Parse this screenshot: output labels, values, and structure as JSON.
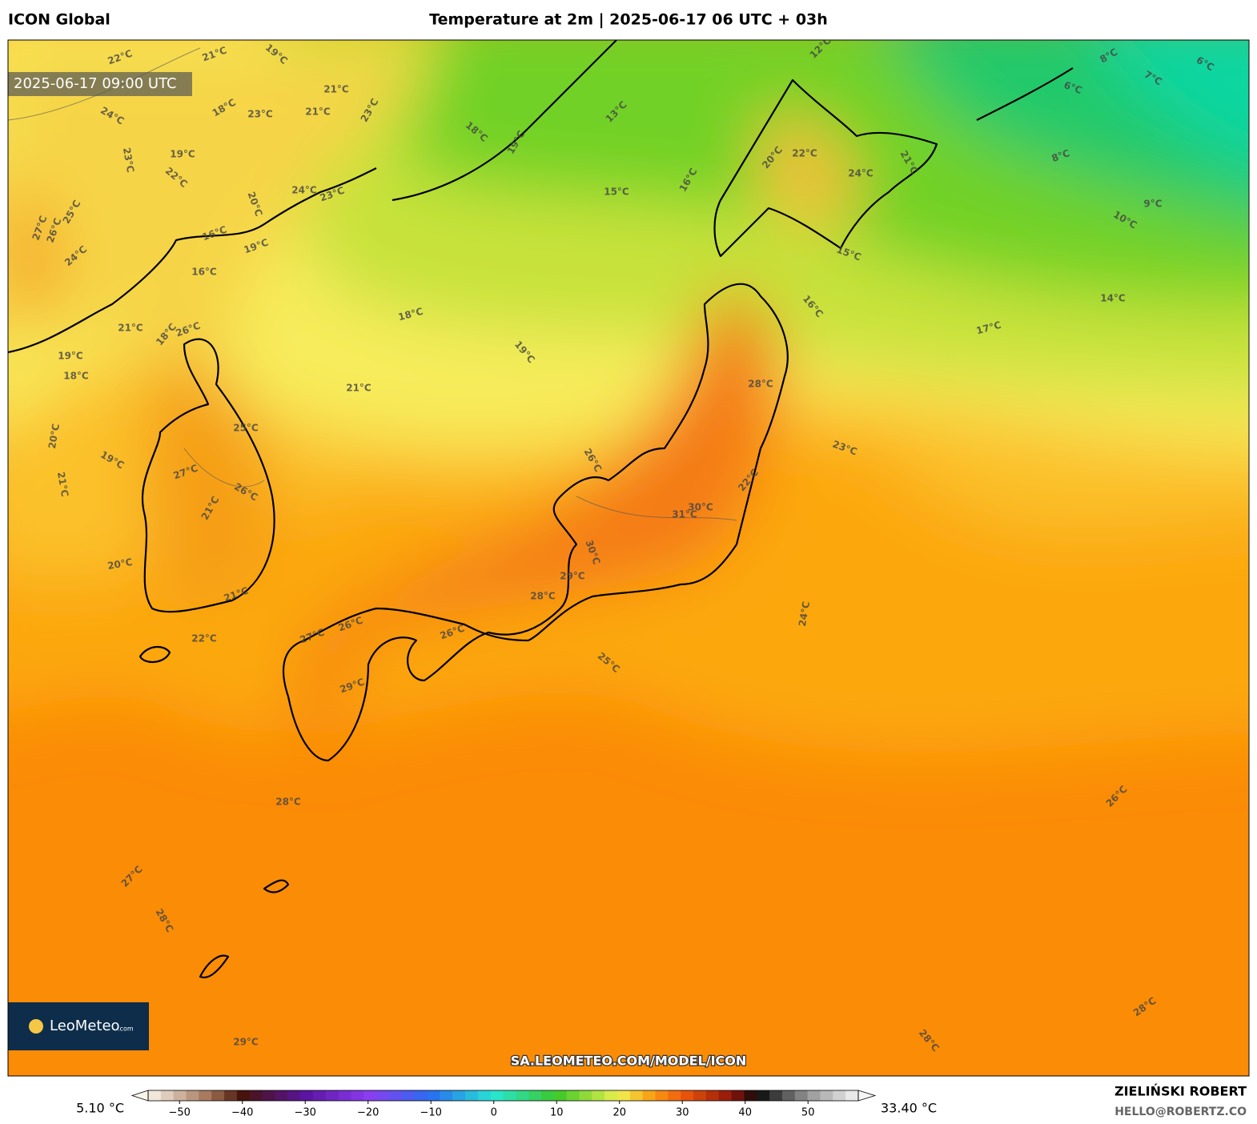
{
  "header": {
    "model": "ICON Global",
    "title": "Temperature at 2m | 2025-06-17 06 UTC + 03h"
  },
  "map": {
    "valid_time": "2025-06-17 09:00 UTC",
    "logo": "LeoMeteo",
    "logo_suffix": ".com",
    "url": "SA.LEOMETEO.COM/MODEL/ICON",
    "contour_labels": [
      "22°C",
      "21°C",
      "19°C",
      "21°C",
      "21°C",
      "23°C",
      "18°C",
      "24°C",
      "19°C",
      "23°C",
      "22°C",
      "20°C",
      "24°C",
      "23°C",
      "16°C",
      "19°C",
      "16°C",
      "27°C",
      "26°C",
      "25°C",
      "24°C",
      "21°C",
      "18°C",
      "26°C",
      "19°C",
      "18°C",
      "20°C",
      "19°C",
      "21°C",
      "20°C",
      "22°C",
      "25°C",
      "27°C",
      "26°C",
      "21°C",
      "21°C",
      "18°C",
      "19°C",
      "21°C",
      "13°C",
      "15°C",
      "16°C",
      "12°C",
      "8°C",
      "6°C",
      "7°C",
      "6°C",
      "8°C",
      "9°C",
      "10°C",
      "14°C",
      "17°C",
      "15°C",
      "16°C",
      "20°C",
      "22°C",
      "24°C",
      "21°C",
      "28°C",
      "23°C",
      "22°C",
      "31°C",
      "30°C",
      "29°C",
      "30°C",
      "28°C",
      "26°C",
      "25°C",
      "24°C",
      "26°C",
      "26°C",
      "27°C",
      "29°C",
      "28°C",
      "27°C",
      "28°C",
      "29°C",
      "26°C",
      "28°C",
      "28°C",
      "18°C",
      "19°C",
      "23°C"
    ]
  },
  "colorbar": {
    "min_label": "5.10 °C",
    "max_label": "33.40 °C",
    "range": [
      -55,
      58
    ],
    "ticks": [
      {
        "value": -50,
        "label": "−50"
      },
      {
        "value": -40,
        "label": "−40"
      },
      {
        "value": -30,
        "label": "−30"
      },
      {
        "value": -20,
        "label": "−20"
      },
      {
        "value": -10,
        "label": "−10"
      },
      0,
      10,
      20,
      30,
      40,
      50
    ]
  },
  "footer": {
    "author": "ZIELIŃSKI ROBERT",
    "email": "HELLO@ROBERTZ.CO"
  }
}
